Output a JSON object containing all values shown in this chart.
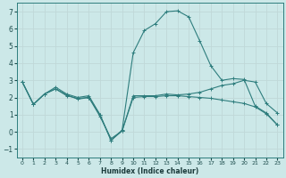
{
  "xlabel": "Humidex (Indice chaleur)",
  "bg_color": "#cce8e8",
  "grid_color": "#c0d8d8",
  "line_color": "#2e7d7d",
  "xlim": [
    -0.5,
    23.5
  ],
  "ylim": [
    -1.5,
    7.5
  ],
  "xticks": [
    0,
    1,
    2,
    3,
    4,
    5,
    6,
    7,
    8,
    9,
    10,
    11,
    12,
    13,
    14,
    15,
    16,
    17,
    18,
    19,
    20,
    21,
    22,
    23
  ],
  "yticks": [
    -1,
    0,
    1,
    2,
    3,
    4,
    5,
    6,
    7
  ],
  "line1_x": [
    0,
    1,
    2,
    3,
    4,
    5,
    6,
    7,
    8,
    9,
    10,
    11,
    12,
    13,
    14,
    15,
    16,
    17,
    18,
    19,
    20,
    21,
    22,
    23
  ],
  "line1_y": [
    2.9,
    1.6,
    2.2,
    2.5,
    2.15,
    1.9,
    2.0,
    0.9,
    -0.4,
    0.05,
    2.1,
    2.1,
    2.1,
    2.2,
    2.15,
    2.2,
    2.3,
    2.5,
    2.7,
    2.8,
    3.0,
    2.9,
    1.65,
    1.1
  ],
  "line2_x": [
    0,
    1,
    2,
    3,
    4,
    5,
    6,
    7,
    8,
    9,
    10,
    11,
    12,
    13,
    14,
    15,
    16,
    17,
    18,
    19,
    20,
    21,
    22,
    23
  ],
  "line2_y": [
    2.9,
    1.6,
    2.2,
    2.6,
    2.2,
    2.0,
    2.1,
    1.0,
    -0.5,
    0.1,
    4.6,
    5.9,
    6.3,
    7.0,
    7.05,
    6.7,
    5.3,
    3.85,
    3.0,
    3.1,
    3.05,
    1.5,
    1.1,
    0.4
  ],
  "line3_x": [
    0,
    1,
    2,
    3,
    4,
    5,
    6,
    7,
    8,
    9,
    10,
    11,
    12,
    13,
    14,
    15,
    16,
    17,
    18,
    19,
    20,
    21,
    22,
    23
  ],
  "line3_y": [
    2.9,
    1.6,
    2.2,
    2.5,
    2.1,
    1.95,
    2.0,
    1.0,
    -0.5,
    0.05,
    2.0,
    2.05,
    2.05,
    2.1,
    2.1,
    2.05,
    2.0,
    1.95,
    1.85,
    1.75,
    1.65,
    1.45,
    1.05,
    0.4
  ]
}
